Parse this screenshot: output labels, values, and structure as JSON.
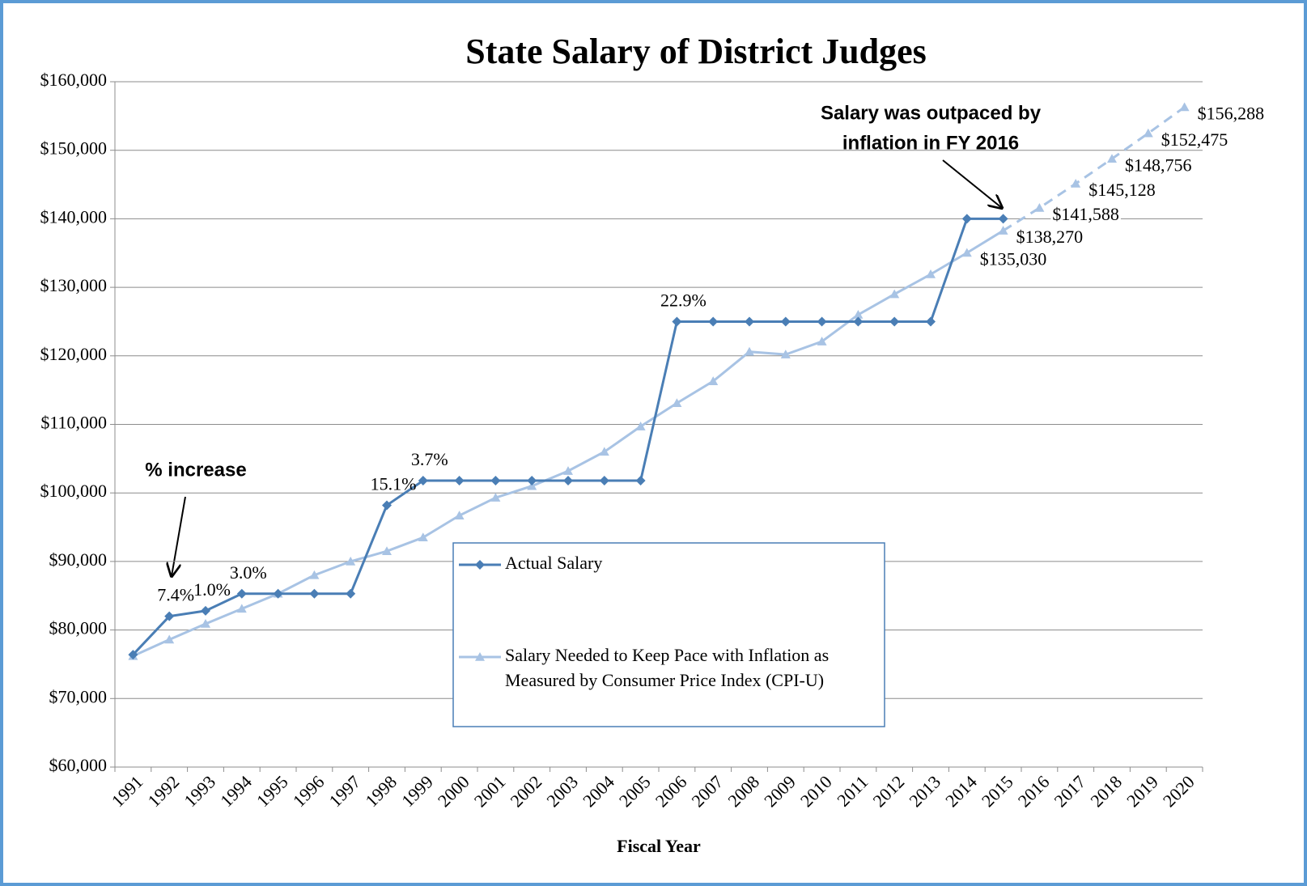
{
  "chart_data": {
    "type": "line",
    "title": "State Salary of District Judges",
    "x_label": "Fiscal Year",
    "categories": [
      "1991",
      "1992",
      "1993",
      "1994",
      "1995",
      "1996",
      "1997",
      "1998",
      "1999",
      "2000",
      "2001",
      "2002",
      "2003",
      "2004",
      "2005",
      "2006",
      "2007",
      "2008",
      "2009",
      "2010",
      "2011",
      "2012",
      "2013",
      "2014",
      "2015",
      "2016",
      "2017",
      "2018",
      "2019",
      "2020"
    ],
    "series": [
      {
        "name": "Actual Salary",
        "color": "#4a7eb5",
        "marker": "diamond",
        "values": [
          76400,
          82000,
          82800,
          85300,
          85300,
          85300,
          85300,
          98200,
          101800,
          101800,
          101800,
          101800,
          101800,
          101800,
          101800,
          125000,
          125000,
          125000,
          125000,
          125000,
          125000,
          125000,
          125000,
          140000,
          140000,
          null,
          null,
          null,
          null,
          null
        ],
        "change_labels": [
          null,
          "7.4%",
          "1.0%",
          "3.0%",
          null,
          null,
          null,
          "15.1%",
          "3.7%",
          null,
          null,
          null,
          null,
          null,
          null,
          "22.9%",
          null,
          null,
          null,
          null,
          null,
          null,
          null,
          null,
          null,
          null,
          null,
          null,
          null,
          null
        ]
      },
      {
        "name": "Salary Needed to Keep Pace with Inflation as Measured by Consumer Price Index (CPI-U)",
        "color": "#a8c3e4",
        "marker": "triangle",
        "values": [
          76200,
          78600,
          80900,
          83100,
          85300,
          88000,
          90000,
          91500,
          93500,
          96700,
          99300,
          101000,
          103200,
          106000,
          109700,
          113100,
          116300,
          120600,
          120200,
          122100,
          126000,
          129000,
          131900,
          135030,
          138270,
          141588,
          145128,
          148756,
          152475,
          156288
        ],
        "value_labels": [
          null,
          null,
          null,
          null,
          null,
          null,
          null,
          null,
          null,
          null,
          null,
          null,
          null,
          null,
          null,
          null,
          null,
          null,
          null,
          null,
          null,
          null,
          null,
          "$135,030",
          "$138,270",
          "$141,588",
          "$145,128",
          "$148,756",
          "$152,475",
          "$156,288"
        ]
      }
    ],
    "ylim": [
      60000,
      160000
    ],
    "yticks": [
      {
        "value": 60000,
        "label": "$60,000"
      },
      {
        "value": 70000,
        "label": "$70,000"
      },
      {
        "value": 80000,
        "label": "$80,000"
      },
      {
        "value": 90000,
        "label": "$90,000"
      },
      {
        "value": 100000,
        "label": "$100,000"
      },
      {
        "value": 110000,
        "label": "$110,000"
      },
      {
        "value": 120000,
        "label": "$120,000"
      },
      {
        "value": 130000,
        "label": "$130,000"
      },
      {
        "value": 140000,
        "label": "$140,000"
      },
      {
        "value": 150000,
        "label": "$150,000"
      },
      {
        "value": 160000,
        "label": "$160,000"
      }
    ],
    "grid": true,
    "annotations": [
      {
        "text": [
          "% increase"
        ]
      },
      {
        "text": [
          "Salary was outpaced by",
          "inflation in FY 2016"
        ]
      }
    ]
  }
}
